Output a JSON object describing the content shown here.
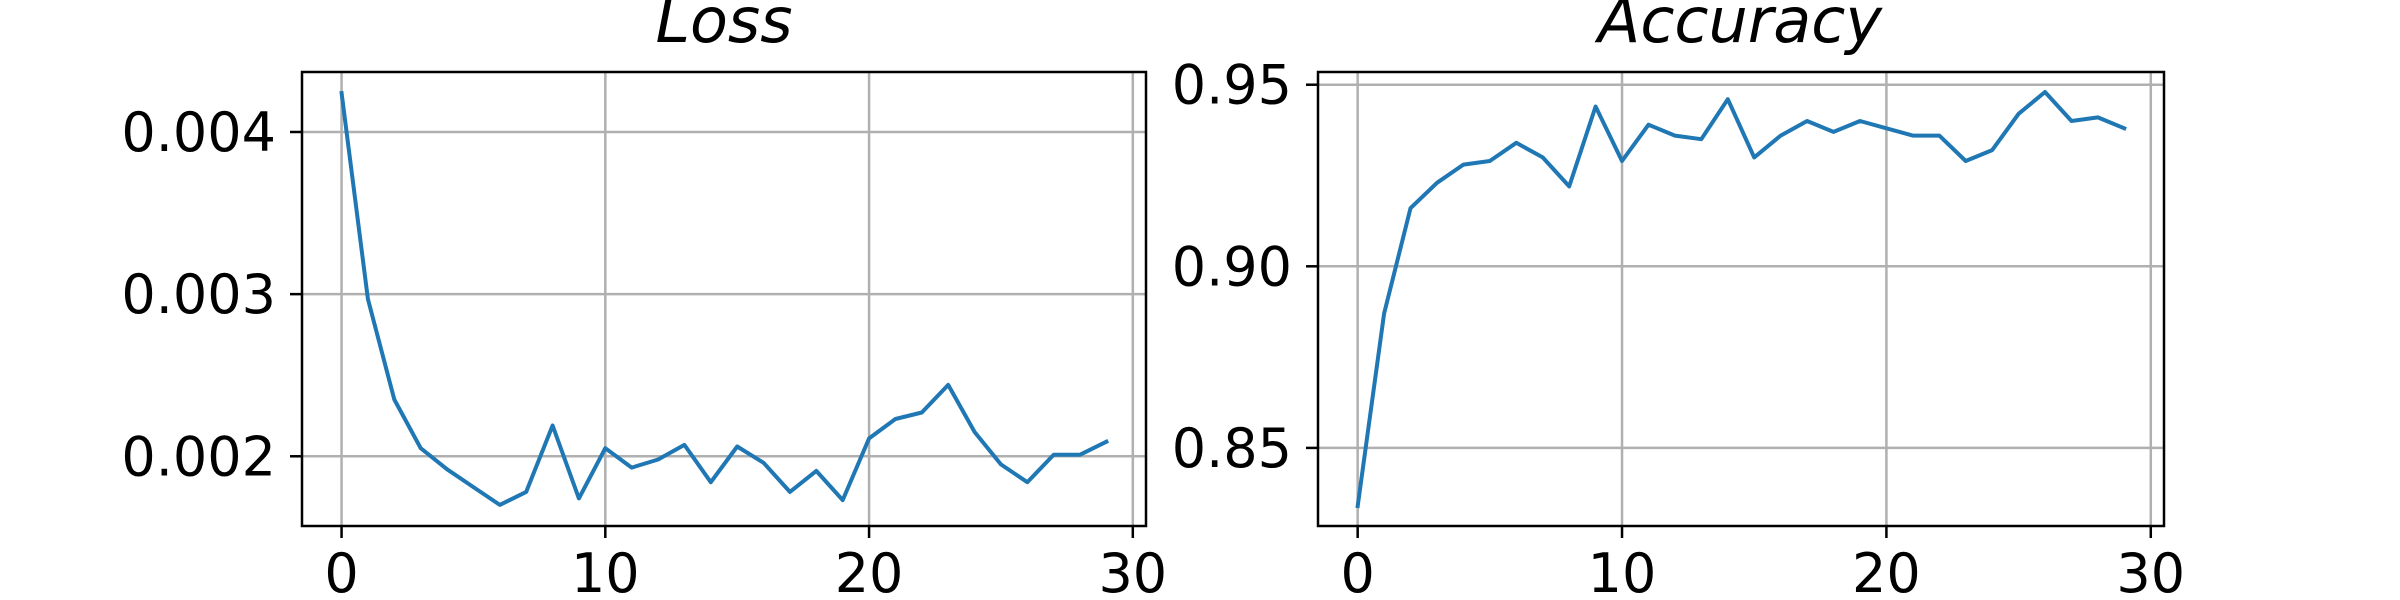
{
  "chart_data": [
    {
      "type": "line",
      "title": "Loss",
      "xlabel": "",
      "ylabel": "",
      "xlim": [
        -1.5,
        30.5
      ],
      "ylim": [
        0.00157,
        0.00437
      ],
      "xticks": [
        0,
        10,
        20,
        30
      ],
      "yticks": [
        0.002,
        0.003,
        0.004
      ],
      "xtick_labels": [
        "0",
        "10",
        "20",
        "30"
      ],
      "ytick_labels": [
        "0.002",
        "0.003",
        "0.004"
      ],
      "grid": true,
      "line_color": "#1f77b4",
      "grid_color": "#b0b0b0",
      "x": [
        0,
        1,
        2,
        3,
        4,
        5,
        6,
        7,
        8,
        9,
        10,
        11,
        12,
        13,
        14,
        15,
        16,
        17,
        18,
        19,
        20,
        21,
        22,
        23,
        24,
        25,
        26,
        27,
        28,
        29
      ],
      "series": [
        {
          "values": [
            0.00424,
            0.00297,
            0.00235,
            0.00205,
            0.00192,
            0.00181,
            0.0017,
            0.00178,
            0.00219,
            0.00174,
            0.00205,
            0.00193,
            0.00198,
            0.00207,
            0.00184,
            0.00206,
            0.00196,
            0.00178,
            0.00191,
            0.00173,
            0.00211,
            0.00223,
            0.00227,
            0.00244,
            0.00215,
            0.00195,
            0.00184,
            0.00201,
            0.00201,
            0.00209
          ]
        }
      ]
    },
    {
      "type": "line",
      "title": "Accuracy",
      "xlabel": "",
      "ylabel": "",
      "xlim": [
        -1.5,
        30.5
      ],
      "ylim": [
        0.8285,
        0.9535
      ],
      "xticks": [
        0,
        10,
        20,
        30
      ],
      "yticks": [
        0.85,
        0.9,
        0.95
      ],
      "xtick_labels": [
        "0",
        "10",
        "20",
        "30"
      ],
      "ytick_labels": [
        "0.85",
        "0.90",
        "0.95"
      ],
      "grid": true,
      "line_color": "#1f77b4",
      "grid_color": "#b0b0b0",
      "x": [
        0,
        1,
        2,
        3,
        4,
        5,
        6,
        7,
        8,
        9,
        10,
        11,
        12,
        13,
        14,
        15,
        16,
        17,
        18,
        19,
        20,
        21,
        22,
        23,
        24,
        25,
        26,
        27,
        28,
        29
      ],
      "series": [
        {
          "values": [
            0.834,
            0.887,
            0.916,
            0.923,
            0.928,
            0.929,
            0.934,
            0.93,
            0.922,
            0.944,
            0.929,
            0.939,
            0.936,
            0.935,
            0.946,
            0.93,
            0.936,
            0.94,
            0.937,
            0.94,
            0.938,
            0.936,
            0.936,
            0.929,
            0.932,
            0.942,
            0.948,
            0.94,
            0.941,
            0.938
          ]
        }
      ]
    }
  ]
}
